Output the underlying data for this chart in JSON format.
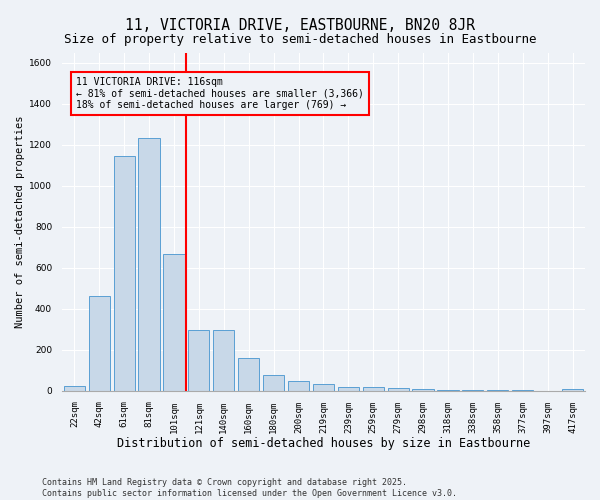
{
  "title": "11, VICTORIA DRIVE, EASTBOURNE, BN20 8JR",
  "subtitle": "Size of property relative to semi-detached houses in Eastbourne",
  "xlabel": "Distribution of semi-detached houses by size in Eastbourne",
  "ylabel": "Number of semi-detached properties",
  "categories": [
    "22sqm",
    "42sqm",
    "61sqm",
    "81sqm",
    "101sqm",
    "121sqm",
    "140sqm",
    "160sqm",
    "180sqm",
    "200sqm",
    "219sqm",
    "239sqm",
    "259sqm",
    "279sqm",
    "298sqm",
    "318sqm",
    "338sqm",
    "358sqm",
    "377sqm",
    "397sqm",
    "417sqm"
  ],
  "values": [
    25,
    465,
    1145,
    1235,
    665,
    295,
    295,
    158,
    75,
    50,
    35,
    20,
    20,
    12,
    8,
    5,
    3,
    2,
    2,
    1,
    8
  ],
  "bar_color": "#c8d8e8",
  "bar_edge_color": "#5a9fd4",
  "vline_x_index": 5,
  "vline_color": "red",
  "vline_label": "11 VICTORIA DRIVE: 116sqm",
  "annotation_smaller": "← 81% of semi-detached houses are smaller (3,366)",
  "annotation_larger": "18% of semi-detached houses are larger (769) →",
  "box_edge_color": "red",
  "ylim": [
    0,
    1650
  ],
  "yticks": [
    0,
    200,
    400,
    600,
    800,
    1000,
    1200,
    1400,
    1600
  ],
  "bg_color": "#eef2f7",
  "grid_color": "#ffffff",
  "footer": "Contains HM Land Registry data © Crown copyright and database right 2025.\nContains public sector information licensed under the Open Government Licence v3.0.",
  "title_fontsize": 10.5,
  "subtitle_fontsize": 9,
  "xlabel_fontsize": 8.5,
  "ylabel_fontsize": 7.5,
  "tick_fontsize": 6.5,
  "annotation_fontsize": 7,
  "footer_fontsize": 6
}
